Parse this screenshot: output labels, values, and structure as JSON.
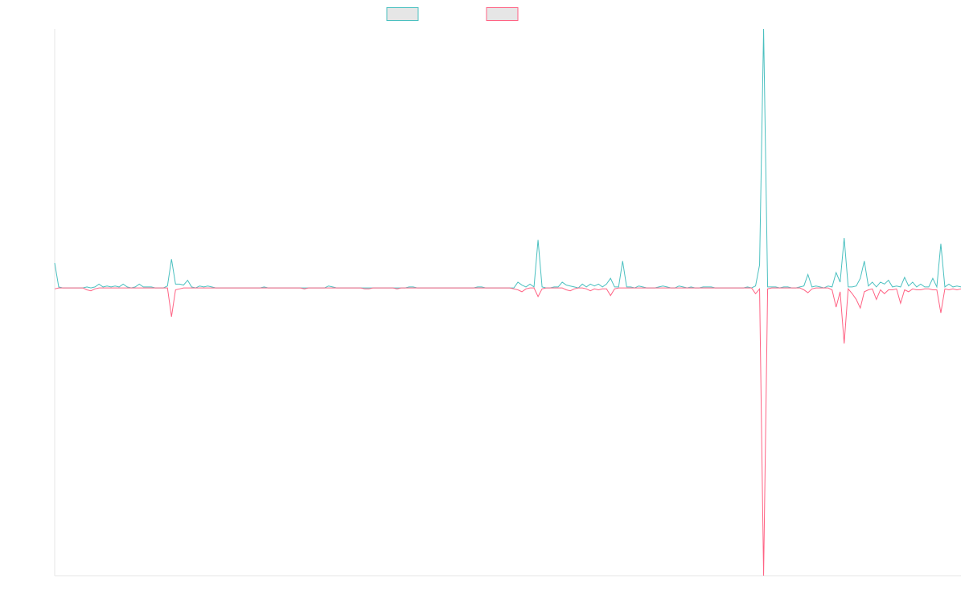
{
  "chart_data": {
    "type": "line",
    "title": "",
    "xlabel": "",
    "ylabel": "",
    "grid": false,
    "legend_placement": "top-center",
    "ylim": [
      -15,
      13.5
    ],
    "x_count": 226,
    "series": [
      {
        "color": "#4bc0c0",
        "fill": "#e6e6e6",
        "points": [
          [
            0,
            1.3
          ],
          [
            1,
            0.05
          ],
          [
            8,
            0.05
          ],
          [
            10,
            0.05
          ],
          [
            11,
            0.2
          ],
          [
            12,
            0.05
          ],
          [
            13,
            0.1
          ],
          [
            14,
            0.05
          ],
          [
            15,
            0.1
          ],
          [
            16,
            0.05
          ],
          [
            17,
            0.2
          ],
          [
            18,
            0.05
          ],
          [
            20,
            0.05
          ],
          [
            21,
            0.2
          ],
          [
            22,
            0.05
          ],
          [
            23,
            0.05
          ],
          [
            24,
            0.05
          ],
          [
            28,
            0.1
          ],
          [
            29,
            1.5
          ],
          [
            30,
            0.2
          ],
          [
            31,
            0.2
          ],
          [
            32,
            0.15
          ],
          [
            33,
            0.4
          ],
          [
            34,
            0.05
          ],
          [
            36,
            0.1
          ],
          [
            37,
            0.05
          ],
          [
            38,
            0.1
          ],
          [
            39,
            0.05
          ],
          [
            52,
            0.05
          ],
          [
            68,
            0.1
          ],
          [
            69,
            0.05
          ],
          [
            88,
            0.05
          ],
          [
            89,
            0.05
          ],
          [
            105,
            0.05
          ],
          [
            106,
            0.05
          ],
          [
            115,
            0.3
          ],
          [
            116,
            0.15
          ],
          [
            117,
            0.05
          ],
          [
            118,
            0.2
          ],
          [
            119,
            0.05
          ],
          [
            120,
            2.5
          ],
          [
            121,
            0.05
          ],
          [
            124,
            0.05
          ],
          [
            125,
            0.05
          ],
          [
            126,
            0.3
          ],
          [
            127,
            0.15
          ],
          [
            128,
            0.1
          ],
          [
            129,
            0.05
          ],
          [
            131,
            0.2
          ],
          [
            132,
            0.05
          ],
          [
            133,
            0.2
          ],
          [
            134,
            0.1
          ],
          [
            135,
            0.2
          ],
          [
            136,
            0.05
          ],
          [
            137,
            0.2
          ],
          [
            138,
            0.5
          ],
          [
            139,
            0.05
          ],
          [
            140,
            0.05
          ],
          [
            141,
            1.4
          ],
          [
            142,
            0.05
          ],
          [
            143,
            0.05
          ],
          [
            145,
            0.1
          ],
          [
            146,
            0.05
          ],
          [
            150,
            0.05
          ],
          [
            151,
            0.1
          ],
          [
            152,
            0.05
          ],
          [
            155,
            0.1
          ],
          [
            156,
            0.05
          ],
          [
            158,
            0.05
          ],
          [
            161,
            0.05
          ],
          [
            162,
            0.05
          ],
          [
            163,
            0.05
          ],
          [
            172,
            0.05
          ],
          [
            174,
            0.1
          ],
          [
            175,
            1.2
          ],
          [
            176,
            13.5
          ],
          [
            177,
            0.05
          ],
          [
            178,
            0.05
          ],
          [
            179,
            0.05
          ],
          [
            181,
            0.05
          ],
          [
            182,
            0.05
          ],
          [
            185,
            0.05
          ],
          [
            186,
            0.1
          ],
          [
            187,
            0.7
          ],
          [
            188,
            0.05
          ],
          [
            189,
            0.1
          ],
          [
            190,
            0.05
          ],
          [
            192,
            0.1
          ],
          [
            193,
            0.05
          ],
          [
            194,
            0.8
          ],
          [
            195,
            0.3
          ],
          [
            196,
            2.6
          ],
          [
            197,
            0.05
          ],
          [
            198,
            0.05
          ],
          [
            199,
            0.1
          ],
          [
            200,
            0.5
          ],
          [
            201,
            1.4
          ],
          [
            202,
            0.1
          ],
          [
            203,
            0.3
          ],
          [
            204,
            0.05
          ],
          [
            205,
            0.3
          ],
          [
            206,
            0.2
          ],
          [
            207,
            0.4
          ],
          [
            208,
            0.05
          ],
          [
            209,
            0.1
          ],
          [
            210,
            0.05
          ],
          [
            211,
            0.55
          ],
          [
            212,
            0.1
          ],
          [
            213,
            0.3
          ],
          [
            214,
            0.05
          ],
          [
            215,
            0.2
          ],
          [
            216,
            0.05
          ],
          [
            217,
            0.05
          ],
          [
            218,
            0.5
          ],
          [
            219,
            0.05
          ],
          [
            220,
            2.3
          ],
          [
            221,
            0.05
          ],
          [
            222,
            0.2
          ],
          [
            223,
            0.05
          ],
          [
            224,
            0.1
          ],
          [
            225,
            0.05
          ]
        ]
      },
      {
        "color": "#ff6384",
        "fill": "#e6e6e6",
        "points": [
          [
            0,
            -0.05
          ],
          [
            8,
            -0.1
          ],
          [
            9,
            -0.15
          ],
          [
            10,
            -0.05
          ],
          [
            29,
            -1.5
          ],
          [
            30,
            -0.1
          ],
          [
            31,
            -0.05
          ],
          [
            62,
            -0.05
          ],
          [
            77,
            -0.05
          ],
          [
            78,
            -0.05
          ],
          [
            85,
            -0.05
          ],
          [
            114,
            -0.05
          ],
          [
            115,
            -0.1
          ],
          [
            116,
            -0.2
          ],
          [
            117,
            -0.05
          ],
          [
            120,
            -0.45
          ],
          [
            121,
            -0.05
          ],
          [
            127,
            -0.1
          ],
          [
            128,
            -0.15
          ],
          [
            129,
            -0.05
          ],
          [
            132,
            -0.05
          ],
          [
            133,
            -0.15
          ],
          [
            134,
            -0.05
          ],
          [
            135,
            -0.1
          ],
          [
            136,
            -0.05
          ],
          [
            137,
            -0.05
          ],
          [
            138,
            -0.4
          ],
          [
            139,
            -0.05
          ],
          [
            174,
            -0.3
          ],
          [
            175,
            -0.05
          ],
          [
            176,
            -15
          ],
          [
            177,
            -0.05
          ],
          [
            186,
            -0.1
          ],
          [
            187,
            -0.25
          ],
          [
            188,
            -0.05
          ],
          [
            193,
            -0.1
          ],
          [
            194,
            -1.0
          ],
          [
            195,
            -0.2
          ],
          [
            196,
            -2.9
          ],
          [
            197,
            -0.05
          ],
          [
            198,
            -0.3
          ],
          [
            199,
            -0.6
          ],
          [
            200,
            -1.05
          ],
          [
            201,
            -0.2
          ],
          [
            202,
            -0.1
          ],
          [
            203,
            -0.05
          ],
          [
            204,
            -0.6
          ],
          [
            205,
            -0.1
          ],
          [
            206,
            -0.3
          ],
          [
            207,
            -0.1
          ],
          [
            208,
            -0.1
          ],
          [
            209,
            -0.05
          ],
          [
            210,
            -0.8
          ],
          [
            211,
            -0.1
          ],
          [
            212,
            -0.2
          ],
          [
            213,
            -0.05
          ],
          [
            214,
            -0.1
          ],
          [
            215,
            -0.1
          ],
          [
            216,
            -0.05
          ],
          [
            217,
            -0.05
          ],
          [
            218,
            -0.1
          ],
          [
            219,
            -0.1
          ],
          [
            220,
            -1.3
          ],
          [
            221,
            -0.05
          ],
          [
            222,
            -0.1
          ],
          [
            223,
            -0.05
          ],
          [
            224,
            -0.1
          ],
          [
            225,
            -0.05
          ]
        ]
      }
    ]
  }
}
